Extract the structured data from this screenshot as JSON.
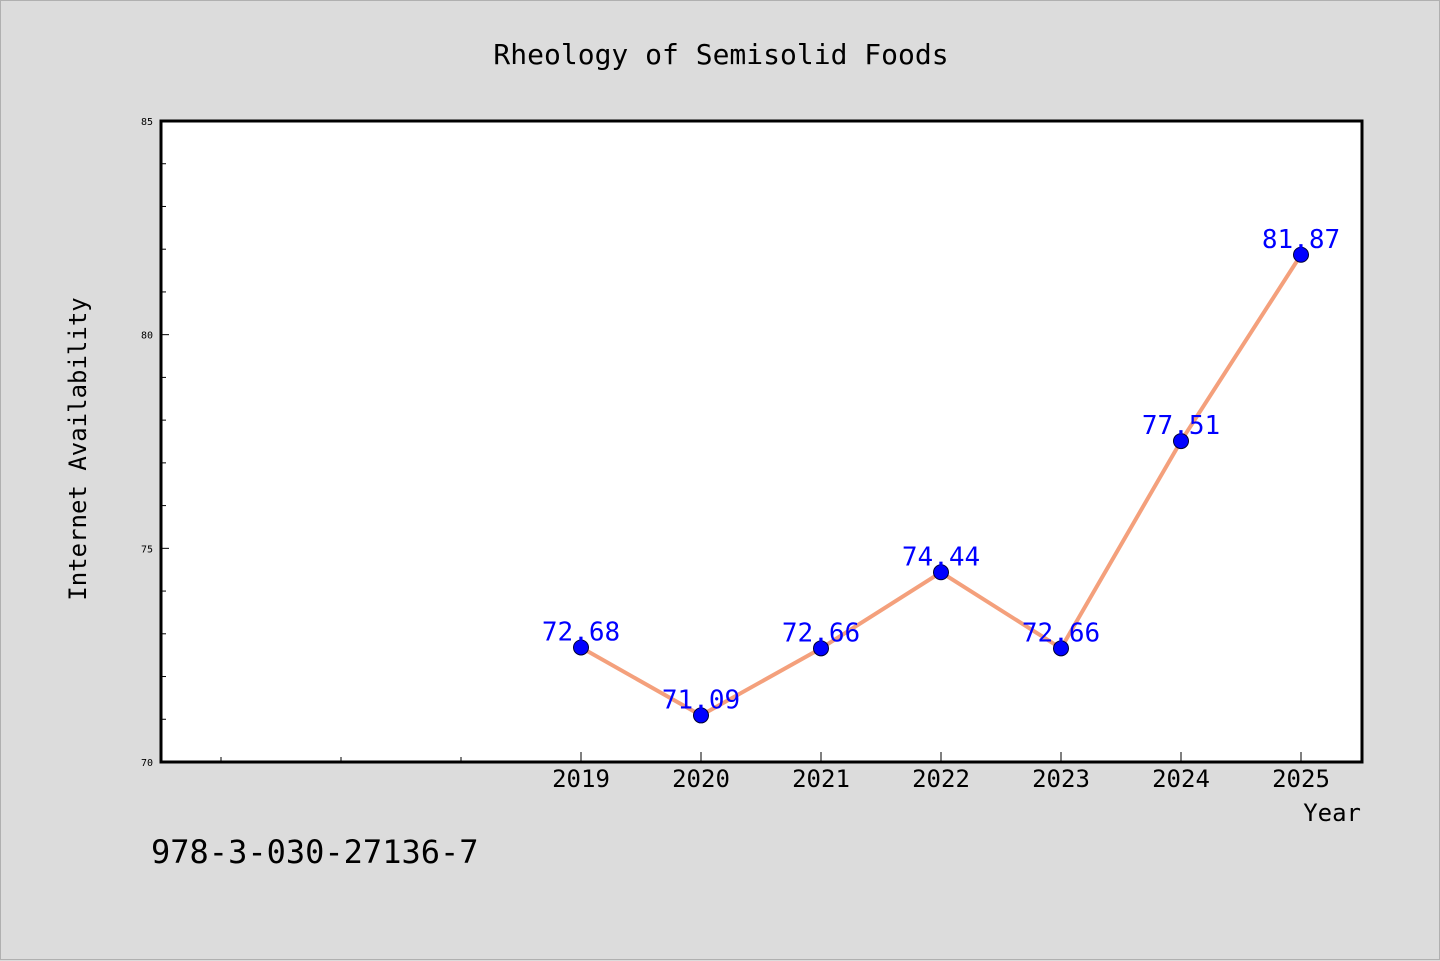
{
  "chart_data": {
    "type": "line",
    "title": "Rheology of Semisolid Foods",
    "xlabel": "Year",
    "ylabel": "Internet Availability",
    "x_ticks": [
      "2019",
      "2020",
      "2021",
      "2022",
      "2023",
      "2024",
      "2025"
    ],
    "y_ticks": [
      "70",
      "75",
      "80",
      "85"
    ],
    "ylim": [
      70,
      85
    ],
    "grid": false,
    "series": [
      {
        "x": [
          "2019",
          "2020",
          "2021",
          "2022",
          "2023",
          "2024",
          "2025"
        ],
        "values": [
          72.68,
          71.09,
          72.66,
          74.44,
          72.66,
          77.51,
          81.87
        ],
        "labels": [
          "72.68",
          "71.09",
          "72.66",
          "74.44",
          "72.66",
          "77.51",
          "81.87"
        ],
        "line_color": "#f4a07c",
        "marker_color": "#0000ff",
        "label_color": "#0000ff"
      }
    ]
  },
  "footer": {
    "isbn": "978-3-030-27136-7"
  }
}
